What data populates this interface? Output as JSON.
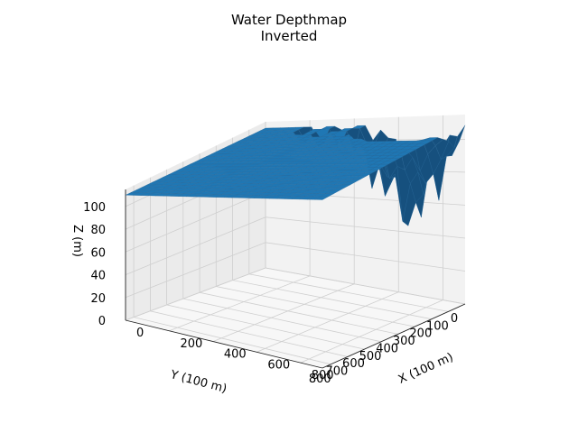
{
  "chart_data": {
    "type": "surface",
    "title_line1": "Water Depthmap",
    "title_line2": "Inverted",
    "xlabel": "X (100 m)",
    "ylabel": "Y (100 m)",
    "zlabel": "Z (m)",
    "xlim": [
      0,
      900
    ],
    "ylim": [
      0,
      850
    ],
    "zlim": [
      0,
      115
    ],
    "x_ticks": [
      "0",
      "200",
      "400",
      "600",
      "800"
    ],
    "y_ticks": [
      "0",
      "100",
      "200",
      "300",
      "400",
      "500",
      "600",
      "700",
      "800"
    ],
    "z_ticks": [
      "0",
      "20",
      "40",
      "60",
      "80",
      "100"
    ],
    "surface_color": "#1f77b4",
    "pane_color": "#f2f2f2",
    "grid": true,
    "surface_summary": {
      "plateau_z": 110,
      "deepest_trench_min_z": 40,
      "trench_location": "near Y 0-100, X 600-800"
    }
  }
}
